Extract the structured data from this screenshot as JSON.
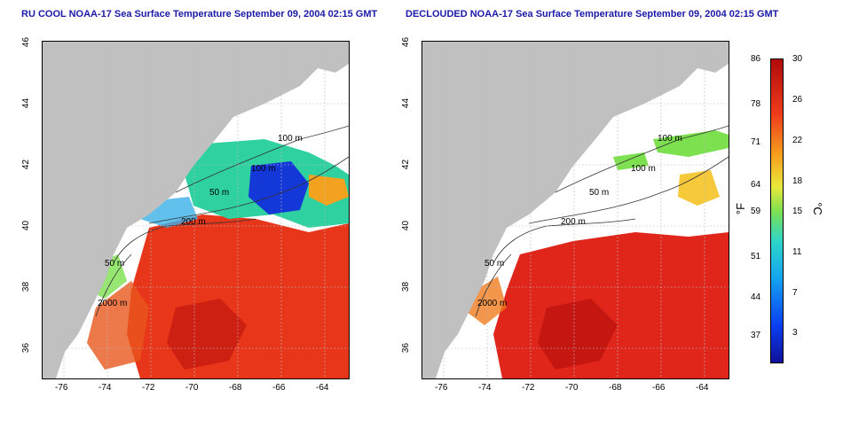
{
  "panels": [
    {
      "id": "left",
      "title": "RU COOL NOAA-17 Sea Surface Temperature September 09, 2004 02:15 GMT",
      "contour_labels": [
        "100 m",
        "100 m",
        "50 m",
        "200 m",
        "50 m",
        "2000 m"
      ]
    },
    {
      "id": "right",
      "title": "DECLOUDED NOAA-17 Sea Surface Temperature September 09, 2004 02:15 GMT",
      "contour_labels": [
        "100 m",
        "100 m",
        "50 m",
        "200 m",
        "50 m",
        "2000 m"
      ]
    }
  ],
  "axes": {
    "lon_ticks": [
      "-76",
      "-74",
      "-72",
      "-70",
      "-68",
      "-66",
      "-64"
    ],
    "lat_ticks": [
      "46",
      "44",
      "42",
      "40",
      "38",
      "36"
    ]
  },
  "colorbar": {
    "fahrenheit_ticks": [
      "86",
      "78",
      "71",
      "64",
      "59",
      "51",
      "44",
      "37"
    ],
    "celsius_ticks": [
      "30",
      "26",
      "22",
      "18",
      "15",
      "11",
      "7",
      "3"
    ],
    "fahrenheit_unit": "°F",
    "celsius_unit": "°C"
  },
  "colors": {
    "land": "#c0c0c0",
    "ocean_warm": "#e8341a",
    "ocean_cold": "#1437d8",
    "title": "#1a1aa8"
  }
}
